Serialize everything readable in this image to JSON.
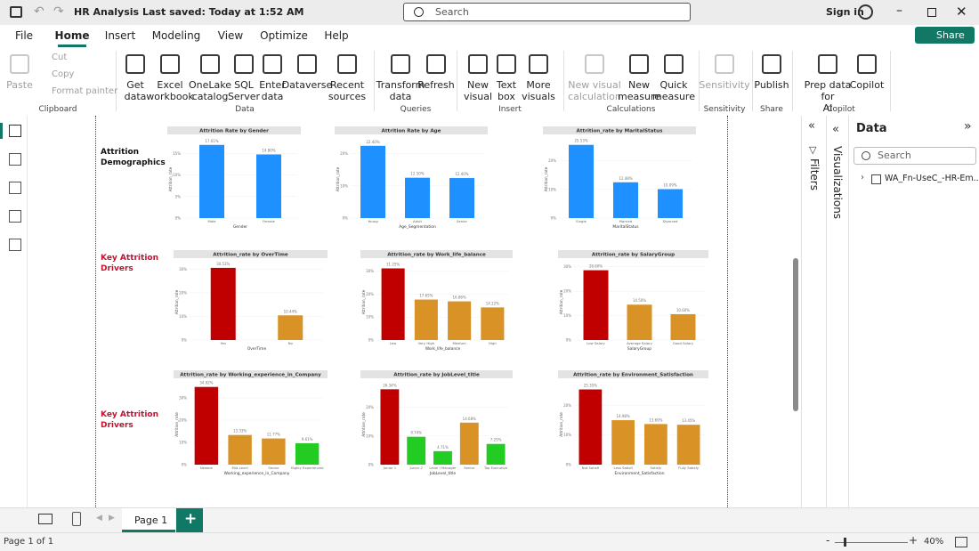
{
  "titlebar": {
    "title": "HR Analysis",
    "saved": "Last saved: Today at 1:52 AM",
    "search": "Search",
    "sign_in": "Sign in"
  },
  "menu": {
    "tabs": [
      "File",
      "Home",
      "Insert",
      "Modeling",
      "View",
      "Optimize",
      "Help"
    ],
    "active": 1,
    "share": "Share"
  },
  "ribbon": {
    "clipboard_small": [
      {
        "label": "Cut",
        "disabled": true
      },
      {
        "label": "Copy",
        "disabled": true
      },
      {
        "label": "Format painter",
        "disabled": true
      }
    ],
    "groups": [
      {
        "name": "Clipboard",
        "buttons": [
          {
            "label": [
              "Paste"
            ],
            "disabled": true
          }
        ]
      },
      {
        "name": "Data",
        "buttons": [
          {
            "label": [
              "Get",
              "data"
            ]
          },
          {
            "label": [
              "Excel",
              "workbook"
            ]
          },
          {
            "label": [
              "OneLake",
              "catalog"
            ]
          },
          {
            "label": [
              "SQL",
              "Server"
            ]
          },
          {
            "label": [
              "Enter",
              "data"
            ]
          },
          {
            "label": [
              "Dataverse"
            ]
          },
          {
            "label": [
              "Recent",
              "sources"
            ]
          }
        ]
      },
      {
        "name": "Queries",
        "buttons": [
          {
            "label": [
              "Transform",
              "data"
            ]
          },
          {
            "label": [
              "Refresh"
            ]
          }
        ]
      },
      {
        "name": "Insert",
        "buttons": [
          {
            "label": [
              "New",
              "visual"
            ]
          },
          {
            "label": [
              "Text",
              "box"
            ]
          },
          {
            "label": [
              "More",
              "visuals"
            ]
          }
        ]
      },
      {
        "name": "Calculations",
        "buttons": [
          {
            "label": [
              "New visual",
              "calculation"
            ],
            "disabled": true
          },
          {
            "label": [
              "New",
              "measure"
            ]
          },
          {
            "label": [
              "Quick",
              "measure"
            ]
          }
        ]
      },
      {
        "name": "Sensitivity",
        "buttons": [
          {
            "label": [
              "Sensitivity"
            ],
            "disabled": true
          }
        ]
      },
      {
        "name": "Share",
        "buttons": [
          {
            "label": [
              "Publish"
            ]
          }
        ]
      },
      {
        "name": "Copilot",
        "buttons": [
          {
            "label": [
              "Prep data for",
              "AI"
            ]
          },
          {
            "label": [
              "Copilot"
            ]
          }
        ]
      }
    ]
  },
  "report": {
    "sections": [
      "Attrition Demographics",
      "Key Attrition Drivers",
      "Key Attrition Drivers"
    ],
    "section_colors": [
      "#111111",
      "#c8102e",
      "#c8102e"
    ],
    "charts": [
      {
        "type": "bar",
        "title": "Attrition Rate by Gender",
        "x_label": "Gender",
        "y_label": "Attrition_rate",
        "categories": [
          "Male",
          "Female"
        ],
        "values": [
          17.01,
          14.8
        ],
        "value_labels": [
          "17.01%",
          "14.80%"
        ],
        "colors": [
          "#1e90ff",
          "#1e90ff"
        ],
        "ylim": [
          0,
          18
        ],
        "yticks": [
          {
            "value": 0,
            "label": "0%"
          },
          {
            "value": 5,
            "label": "5%"
          },
          {
            "value": 10,
            "label": "10%"
          },
          {
            "value": 15,
            "label": "15%"
          }
        ],
        "grid": true
      },
      {
        "type": "bar",
        "title": "Attrition Rate by Age",
        "x_label": "Age_Segmentation",
        "y_label": "Attrition_rate",
        "categories": [
          "Young",
          "Adult",
          "Senior"
        ],
        "values": [
          22.4,
          12.5,
          12.4
        ],
        "value_labels": [
          "22.40%",
          "12.50%",
          "12.40%"
        ],
        "colors": [
          "#1e90ff",
          "#1e90ff",
          "#1e90ff"
        ],
        "ylim": [
          0,
          24
        ],
        "yticks": [
          {
            "value": 0,
            "label": "0%"
          },
          {
            "value": 10,
            "label": "10%"
          },
          {
            "value": 20,
            "label": "20%"
          }
        ],
        "grid": true
      },
      {
        "type": "bar",
        "title": "Attrition_rate by MaritalStatus",
        "x_label": "MaritalStatus",
        "y_label": "Attrition_rate",
        "categories": [
          "Single",
          "Married",
          "Divorced"
        ],
        "values": [
          25.53,
          12.48,
          10.09
        ],
        "value_labels": [
          "25.53%",
          "12.48%",
          "10.09%"
        ],
        "colors": [
          "#1e90ff",
          "#1e90ff",
          "#1e90ff"
        ],
        "ylim": [
          0,
          27
        ],
        "yticks": [
          {
            "value": 0,
            "label": "0%"
          },
          {
            "value": 10,
            "label": "10%"
          },
          {
            "value": 20,
            "label": "20%"
          }
        ],
        "grid": true
      },
      {
        "type": "bar",
        "title": "Attrition_rate by OverTime",
        "x_label": "OverTime",
        "y_label": "Attrition_rate",
        "categories": [
          "Yes",
          "No"
        ],
        "values": [
          30.53,
          10.44
        ],
        "value_labels": [
          "30.53%",
          "10.44%"
        ],
        "colors": [
          "#c00000",
          "#d99225"
        ],
        "ylim": [
          0,
          32
        ],
        "yticks": [
          {
            "value": 0,
            "label": "0%"
          },
          {
            "value": 10,
            "label": "10%"
          },
          {
            "value": 20,
            "label": "20%"
          },
          {
            "value": 30,
            "label": "30%"
          }
        ],
        "grid": true
      },
      {
        "type": "bar",
        "title": "Attrition_rate by Work_life_balance",
        "x_label": "Work_life_balance",
        "y_label": "Attrition_rate",
        "categories": [
          "Low",
          "Very High",
          "Medium",
          "High"
        ],
        "values": [
          31.25,
          17.65,
          16.86,
          14.22
        ],
        "value_labels": [
          "31.25%",
          "17.65%",
          "16.86%",
          "14.22%"
        ],
        "colors": [
          "#c00000",
          "#d99225",
          "#d99225",
          "#d99225"
        ],
        "ylim": [
          0,
          33
        ],
        "yticks": [
          {
            "value": 0,
            "label": "0%"
          },
          {
            "value": 10,
            "label": "10%"
          },
          {
            "value": 20,
            "label": "20%"
          },
          {
            "value": 30,
            "label": "30%"
          }
        ],
        "grid": true
      },
      {
        "type": "bar",
        "title": "Attrition_rate by SalaryGroup",
        "x_label": "SalaryGroup",
        "y_label": "Attrition_rate",
        "categories": [
          "Low Salary",
          "Average Salary",
          "Good Salary"
        ],
        "values": [
          28.6,
          14.5,
          10.6
        ],
        "value_labels": [
          "28.60%",
          "14.50%",
          "10.60%"
        ],
        "colors": [
          "#c00000",
          "#d99225",
          "#d99225"
        ],
        "ylim": [
          0,
          31
        ],
        "yticks": [
          {
            "value": 0,
            "label": "0%"
          },
          {
            "value": 10,
            "label": "10%"
          },
          {
            "value": 20,
            "label": "20%"
          },
          {
            "value": 30,
            "label": "30%"
          }
        ],
        "grid": true
      },
      {
        "type": "bar",
        "title": "Attrition_rate by Working_experience_in_Company",
        "x_label": "Working_experience_in_Company",
        "y_label": "Attrition_rate",
        "categories": [
          "Newbie",
          "Mid-Level",
          "Senior",
          "Highly Experienced"
        ],
        "values": [
          34.92,
          13.33,
          11.77,
          9.61
        ],
        "value_labels": [
          "34.92%",
          "13.33%",
          "11.77%",
          "9.61%"
        ],
        "colors": [
          "#c00000",
          "#d99225",
          "#d99225",
          "#22cc22"
        ],
        "ylim": [
          0,
          36
        ],
        "yticks": [
          {
            "value": 0,
            "label": "0%"
          },
          {
            "value": 10,
            "label": "10%"
          },
          {
            "value": 20,
            "label": "20%"
          },
          {
            "value": 30,
            "label": "30%"
          }
        ],
        "grid": true
      },
      {
        "type": "bar",
        "title": "Attrition_rate by JobLevel_title",
        "x_label": "JobLevel_title",
        "y_label": "Attrition_rate",
        "categories": [
          "Junior 1",
          "Junior 2",
          "Level I Manager",
          "Senior",
          "Top Executive"
        ],
        "values": [
          26.34,
          9.74,
          4.71,
          14.68,
          7.25
        ],
        "value_labels": [
          "26.34%",
          "9.74%",
          "4.71%",
          "14.68%",
          "7.25%"
        ],
        "colors": [
          "#c00000",
          "#22cc22",
          "#22cc22",
          "#d99225",
          "#22cc22"
        ],
        "ylim": [
          0,
          28
        ],
        "yticks": [
          {
            "value": 0,
            "label": "0%"
          },
          {
            "value": 10,
            "label": "10%"
          },
          {
            "value": 20,
            "label": "20%"
          }
        ],
        "grid": true
      },
      {
        "type": "bar",
        "title": "Attrition_rate by Environment_Satisfaction",
        "x_label": "Environment_Satisfaction",
        "y_label": "Attrition_rate",
        "categories": [
          "Not Satisfi",
          "Less Satisfi",
          "Satisfy",
          "Fully Satisfy"
        ],
        "values": [
          25.35,
          14.98,
          13.69,
          13.45
        ],
        "value_labels": [
          "25.35%",
          "14.98%",
          "13.69%",
          "13.45%"
        ],
        "colors": [
          "#c00000",
          "#d99225",
          "#d99225",
          "#d99225"
        ],
        "ylim": [
          0,
          27
        ],
        "yticks": [
          {
            "value": 0,
            "label": "0%"
          },
          {
            "value": 10,
            "label": "10%"
          },
          {
            "value": 20,
            "label": "20%"
          }
        ],
        "grid": true
      }
    ]
  },
  "panes": {
    "filters": "Filters",
    "visualizations": "Visualizations",
    "data": {
      "title": "Data",
      "search": "Search",
      "table": "WA_Fn-UseC_-HR-Em..."
    }
  },
  "footer": {
    "page_tab": "Page 1",
    "status": "Page 1 of 1",
    "zoom": "40%"
  }
}
